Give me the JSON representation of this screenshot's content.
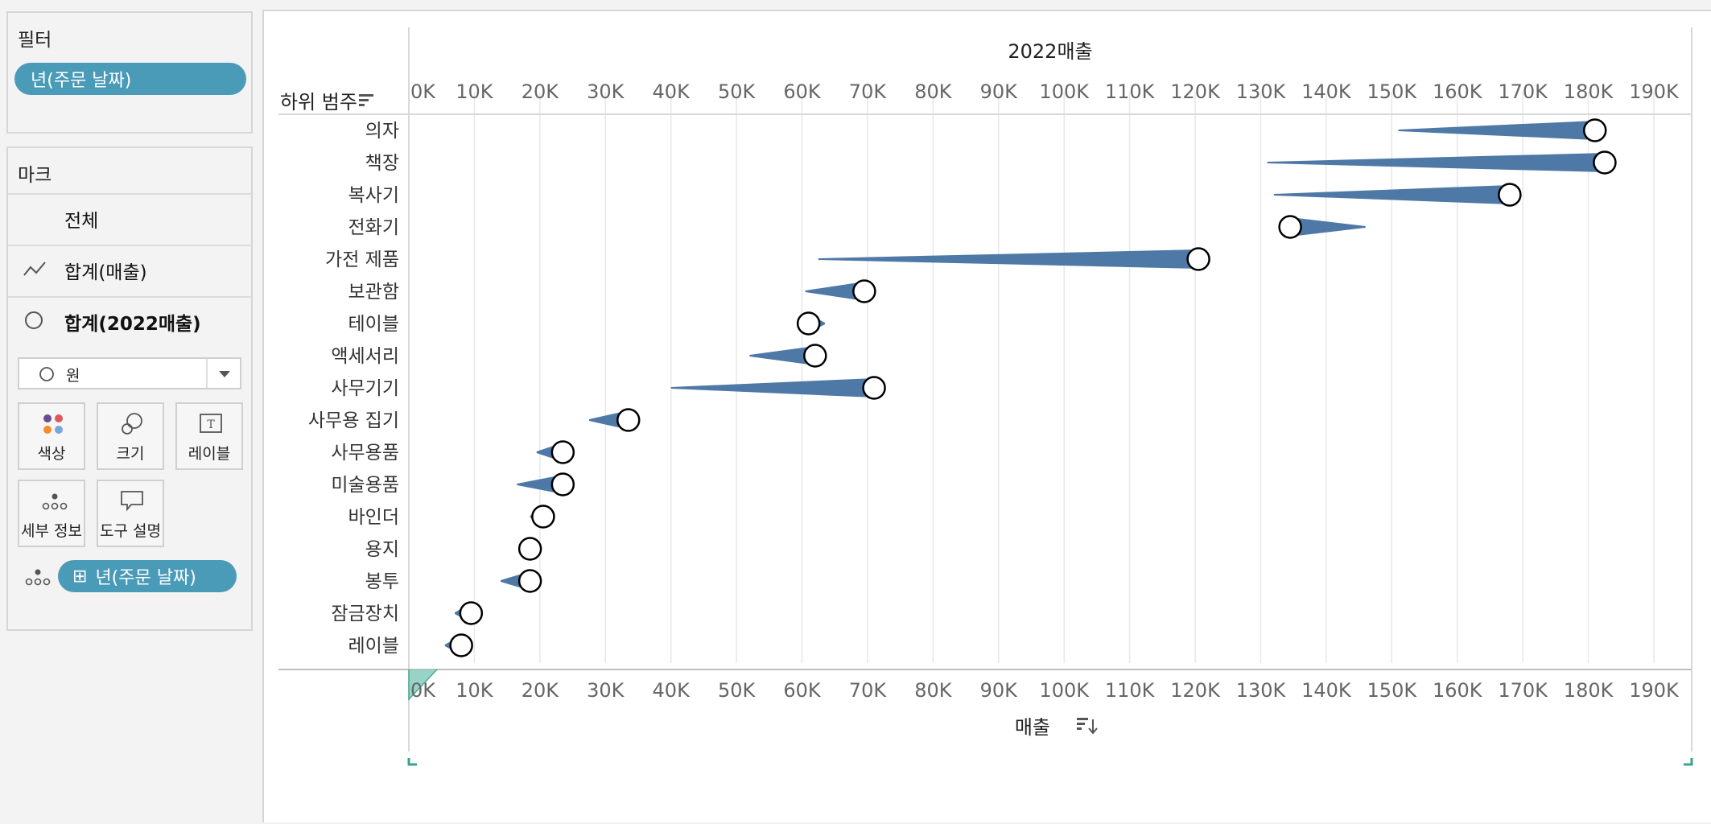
{
  "filters": {
    "title": "필터",
    "pill_label": "년(주문 날짜)"
  },
  "marks": {
    "title": "마크",
    "rows": [
      {
        "label": "전체",
        "icon": "none"
      },
      {
        "label": "합계(매출)",
        "icon": "line-icon"
      },
      {
        "label": "합계(2022매출)",
        "icon": "circle-icon"
      }
    ],
    "mark_type": "원",
    "cards": [
      {
        "label": "색상",
        "icon": "color-icon"
      },
      {
        "label": "크기",
        "icon": "size-icon"
      },
      {
        "label": "레이블",
        "icon": "label-icon"
      },
      {
        "label": "세부 정보",
        "icon": "detail-icon"
      },
      {
        "label": "도구 설명",
        "icon": "tooltip-icon"
      }
    ],
    "detail_pill": "년(주문 날짜)",
    "detail_pill_prefix": "⊞"
  },
  "chart_data": {
    "type": "line",
    "row_header": "하위 범주",
    "top_axis_title": "2022매출",
    "bottom_axis_title": "매출",
    "xlim": [
      0,
      190000
    ],
    "ticks": [
      "0K",
      "10K",
      "20K",
      "30K",
      "40K",
      "50K",
      "60K",
      "70K",
      "80K",
      "90K",
      "100K",
      "110K",
      "120K",
      "130K",
      "140K",
      "150K",
      "160K",
      "170K",
      "180K",
      "190K"
    ],
    "tick_values": [
      0,
      10000,
      20000,
      30000,
      40000,
      50000,
      60000,
      70000,
      80000,
      90000,
      100000,
      110000,
      120000,
      130000,
      140000,
      150000,
      160000,
      170000,
      180000,
      190000
    ],
    "colors": {
      "trend": "#4e79a7",
      "circle_fill": "#ffffff",
      "circle_stroke": "#000000",
      "grid": "#e8e8e8"
    },
    "categories": [
      "의자",
      "책장",
      "복사기",
      "전화기",
      "가전 제품",
      "보관함",
      "테이블",
      "액세서리",
      "사무기기",
      "사무용 집기",
      "사무용품",
      "미술용품",
      "바인더",
      "용지",
      "봉투",
      "잠금장치",
      "레이블"
    ],
    "series": [
      {
        "name": "합계(매출)",
        "values": [
          {
            "start": 151000,
            "end": 181000
          },
          {
            "start": 131000,
            "end": 182500
          },
          {
            "start": 132000,
            "end": 168000
          },
          {
            "start": 146000,
            "end": 134500
          },
          {
            "start": 62500,
            "end": 120500
          },
          {
            "start": 60500,
            "end": 69500
          },
          {
            "start": 63500,
            "end": 61000
          },
          {
            "start": 52000,
            "end": 62000
          },
          {
            "start": 40000,
            "end": 71000
          },
          {
            "start": 27500,
            "end": 33500
          },
          {
            "start": 19500,
            "end": 23500
          },
          {
            "start": 16500,
            "end": 23500
          },
          {
            "start": 18500,
            "end": 20500
          },
          {
            "start": 18000,
            "end": 18500
          },
          {
            "start": 14000,
            "end": 18500
          },
          {
            "start": 7000,
            "end": 9500
          },
          {
            "start": 5500,
            "end": 8000
          }
        ]
      },
      {
        "name": "합계(2022매출)",
        "values": [
          181000,
          182500,
          168000,
          134500,
          120500,
          69500,
          61000,
          62000,
          71000,
          33500,
          23500,
          23500,
          20500,
          18500,
          18500,
          9500,
          8000
        ]
      }
    ]
  }
}
